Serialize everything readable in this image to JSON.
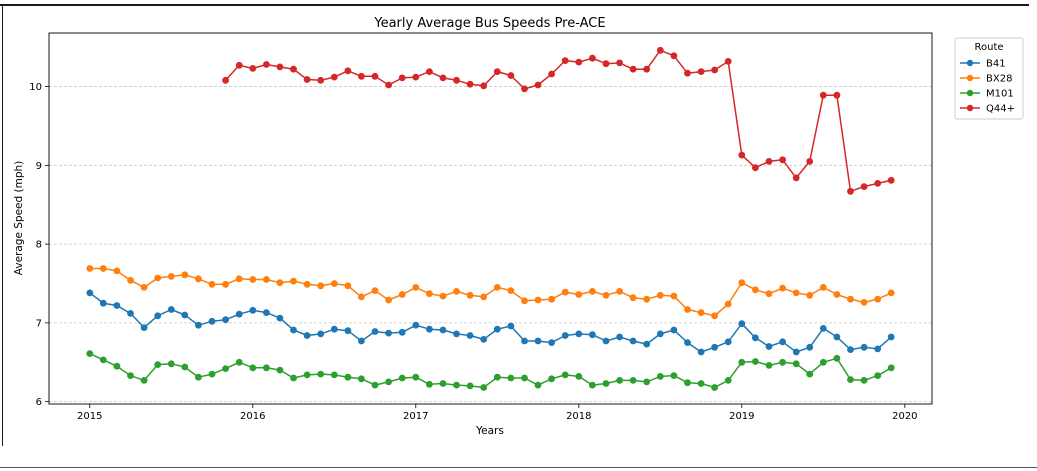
{
  "chart_data": {
    "type": "line",
    "title": "Yearly Average Bus Speeds Pre-ACE",
    "xlabel": "Years",
    "ylabel": "Average Speed (mph)",
    "xlim": [
      "2014-10-01",
      "2020-03-01"
    ],
    "ylim": [
      5.97,
      10.68
    ],
    "xticks": [
      "2015",
      "2016",
      "2017",
      "2018",
      "2019",
      "2020"
    ],
    "yticks": [
      6,
      7,
      8,
      9,
      10
    ],
    "grid": "horizontal dashed",
    "legend": {
      "title": "Route",
      "placement": "top-right"
    },
    "series": [
      {
        "name": "B41",
        "color": "#1f77b4",
        "start": "2015-01",
        "values": [
          7.38,
          7.25,
          7.22,
          7.12,
          6.94,
          7.09,
          7.17,
          7.1,
          6.97,
          7.02,
          7.04,
          7.11,
          7.16,
          7.13,
          7.06,
          6.91,
          6.84,
          6.86,
          6.92,
          6.9,
          6.77,
          6.89,
          6.87,
          6.88,
          6.97,
          6.92,
          6.91,
          6.86,
          6.84,
          6.79,
          6.92,
          6.96,
          6.77,
          6.77,
          6.75,
          6.84,
          6.86,
          6.85,
          6.77,
          6.82,
          6.77,
          6.73,
          6.86,
          6.91,
          6.75,
          6.63,
          6.69,
          6.76,
          6.99,
          6.81,
          6.7,
          6.76,
          6.63,
          6.69,
          6.93,
          6.82,
          6.66,
          6.69,
          6.67,
          6.82
        ]
      },
      {
        "name": "BX28",
        "color": "#ff7f0e",
        "start": "2015-01",
        "values": [
          7.69,
          7.69,
          7.66,
          7.54,
          7.45,
          7.57,
          7.59,
          7.61,
          7.56,
          7.49,
          7.49,
          7.56,
          7.55,
          7.55,
          7.51,
          7.53,
          7.49,
          7.47,
          7.5,
          7.47,
          7.33,
          7.41,
          7.29,
          7.36,
          7.45,
          7.37,
          7.34,
          7.4,
          7.35,
          7.33,
          7.45,
          7.41,
          7.28,
          7.29,
          7.3,
          7.39,
          7.36,
          7.4,
          7.35,
          7.4,
          7.32,
          7.3,
          7.35,
          7.34,
          7.17,
          7.13,
          7.09,
          7.24,
          7.51,
          7.42,
          7.37,
          7.44,
          7.38,
          7.35,
          7.45,
          7.36,
          7.3,
          7.26,
          7.3,
          7.38
        ]
      },
      {
        "name": "M101",
        "color": "#2ca02c",
        "start": "2015-01",
        "values": [
          6.61,
          6.53,
          6.45,
          6.33,
          6.27,
          6.47,
          6.48,
          6.44,
          6.31,
          6.35,
          6.42,
          6.5,
          6.43,
          6.43,
          6.4,
          6.3,
          6.34,
          6.35,
          6.34,
          6.31,
          6.29,
          6.21,
          6.25,
          6.3,
          6.31,
          6.22,
          6.23,
          6.21,
          6.2,
          6.18,
          6.31,
          6.3,
          6.3,
          6.21,
          6.29,
          6.34,
          6.32,
          6.21,
          6.23,
          6.27,
          6.27,
          6.25,
          6.32,
          6.33,
          6.24,
          6.23,
          6.18,
          6.27,
          6.5,
          6.51,
          6.46,
          6.5,
          6.48,
          6.35,
          6.5,
          6.55,
          6.28,
          6.27,
          6.33,
          6.43
        ]
      },
      {
        "name": "Q44+",
        "color": "#d62728",
        "start": "2015-11",
        "values": [
          10.08,
          10.27,
          10.23,
          10.28,
          10.25,
          10.22,
          10.09,
          10.08,
          10.12,
          10.2,
          10.13,
          10.13,
          10.02,
          10.11,
          10.12,
          10.19,
          10.11,
          10.08,
          10.03,
          10.01,
          10.19,
          10.14,
          9.97,
          10.02,
          10.16,
          10.33,
          10.31,
          10.36,
          10.29,
          10.3,
          10.22,
          10.22,
          10.46,
          10.39,
          10.17,
          10.19,
          10.21,
          10.32,
          9.13,
          8.97,
          9.05,
          9.07,
          8.84,
          9.05,
          9.89,
          9.89,
          8.67,
          8.73,
          8.77,
          8.81
        ]
      }
    ]
  }
}
